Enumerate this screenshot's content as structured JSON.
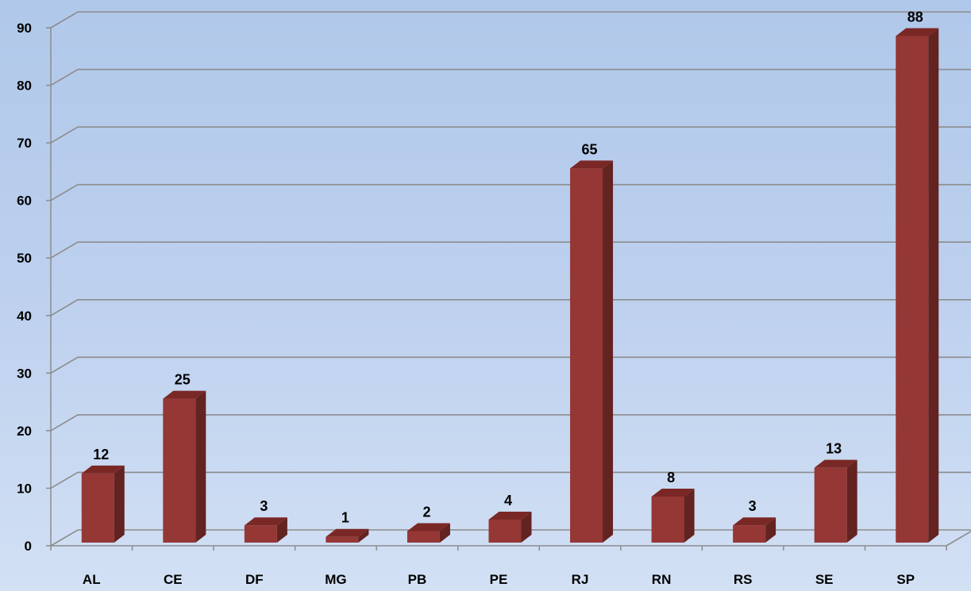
{
  "chart_data": {
    "type": "bar",
    "categories": [
      "AL",
      "CE",
      "DF",
      "MG",
      "PB",
      "PE",
      "RJ",
      "RN",
      "RS",
      "SE",
      "SP"
    ],
    "values": [
      12,
      25,
      3,
      1,
      2,
      4,
      65,
      8,
      3,
      13,
      88
    ],
    "data_labels": [
      "12",
      "25",
      "3",
      "1",
      "2",
      "4",
      "65",
      "8",
      "3",
      "13",
      "88"
    ],
    "ylim": [
      0,
      90
    ],
    "yticks": [
      0,
      10,
      20,
      30,
      40,
      50,
      60,
      70,
      80,
      90
    ],
    "grid": true,
    "three_d": true,
    "colors": {
      "bar_front": "#953735",
      "bar_top": "#7a2825",
      "bar_side": "#632320"
    }
  }
}
